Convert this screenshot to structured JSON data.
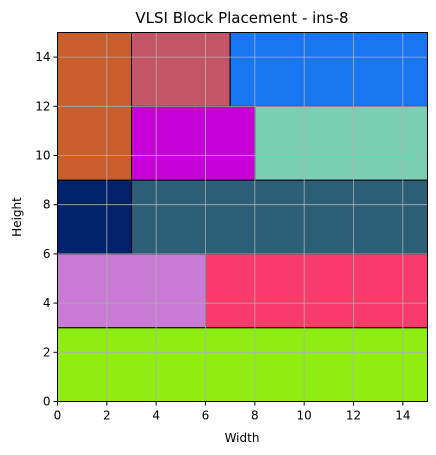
{
  "chart_data": {
    "type": "block-placement",
    "title": "VLSI Block Placement - ins-8",
    "xlabel": "Width",
    "ylabel": "Height",
    "xlim": [
      0,
      15
    ],
    "ylim": [
      0,
      15
    ],
    "xticks": [
      0,
      2,
      4,
      6,
      8,
      10,
      12,
      14
    ],
    "yticks": [
      0,
      2,
      4,
      6,
      8,
      10,
      12,
      14
    ],
    "grid": true,
    "blocks": [
      {
        "x": 0,
        "y": 0,
        "w": 15,
        "h": 3,
        "color": "#8fed12"
      },
      {
        "x": 0,
        "y": 3,
        "w": 6,
        "h": 3,
        "color": "#c77bd4"
      },
      {
        "x": 6,
        "y": 3,
        "w": 9,
        "h": 3,
        "color": "#f93b6b"
      },
      {
        "x": 0,
        "y": 6,
        "w": 3,
        "h": 3,
        "color": "#02226b"
      },
      {
        "x": 3,
        "y": 6,
        "w": 12,
        "h": 3,
        "color": "#2c5f77"
      },
      {
        "x": 0,
        "y": 9,
        "w": 3,
        "h": 6,
        "color": "#c95d2b"
      },
      {
        "x": 3,
        "y": 9,
        "w": 5,
        "h": 3,
        "color": "#c702d9"
      },
      {
        "x": 8,
        "y": 9,
        "w": 7,
        "h": 3,
        "color": "#7acfb2"
      },
      {
        "x": 3,
        "y": 12,
        "w": 4,
        "h": 3,
        "color": "#c45566"
      },
      {
        "x": 7,
        "y": 12,
        "w": 8,
        "h": 3,
        "color": "#1876f0"
      }
    ]
  }
}
